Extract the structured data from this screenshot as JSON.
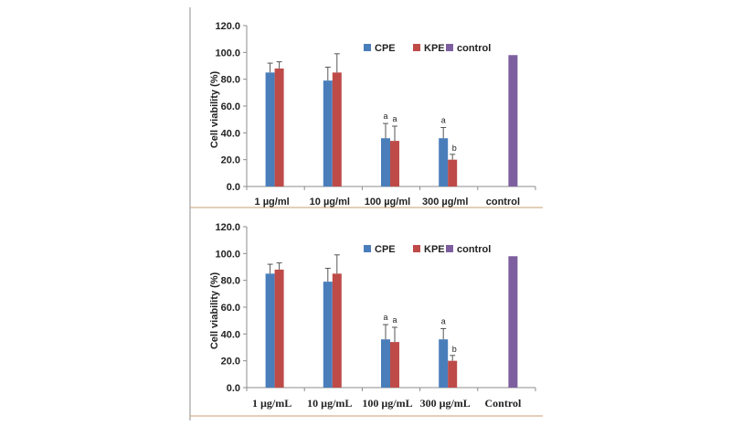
{
  "chart_data": [
    {
      "type": "bar",
      "ylabel": "Cell viability (%)",
      "ylim": [
        0,
        120
      ],
      "yticks": [
        "0.0",
        "20.0",
        "40.0",
        "60.0",
        "80.0",
        "100.0",
        "120.0"
      ],
      "categories": [
        "1 µg/ml",
        "10 µg/ml",
        "100 µg/ml",
        "300 µg/ml",
        "control"
      ],
      "legend": [
        "CPE",
        "KPE",
        "control"
      ],
      "legend_position": "top-right",
      "grid": false,
      "series": [
        {
          "name": "CPE",
          "color": "#4a7ebb",
          "values": [
            85,
            79,
            36,
            36,
            null
          ],
          "errors": [
            7,
            10,
            11,
            8,
            null
          ],
          "annotations": [
            "",
            "",
            "a",
            "a",
            ""
          ]
        },
        {
          "name": "KPE",
          "color": "#be4b48",
          "values": [
            88,
            85,
            34,
            20,
            null
          ],
          "errors": [
            5,
            14,
            11,
            4,
            null
          ],
          "annotations": [
            "",
            "",
            "a",
            "b",
            ""
          ]
        },
        {
          "name": "control",
          "color": "#7d5fa0",
          "values": [
            null,
            null,
            null,
            null,
            98
          ],
          "errors": [
            null,
            null,
            null,
            null,
            null
          ],
          "annotations": [
            "",
            "",
            "",
            "",
            ""
          ]
        }
      ]
    },
    {
      "type": "bar",
      "ylabel": "Cell viability (%)",
      "ylim": [
        0,
        120
      ],
      "yticks": [
        "0.0",
        "20.0",
        "40.0",
        "60.0",
        "80.0",
        "100.0",
        "120.0"
      ],
      "categories": [
        "1 µg/mL",
        "10 µg/mL",
        "100 µg/mL",
        "300 µg/mL",
        "Control"
      ],
      "legend": [
        "CPE",
        "KPE",
        "control"
      ],
      "legend_position": "top-right",
      "grid": false,
      "series": [
        {
          "name": "CPE",
          "color": "#4a7ebb",
          "values": [
            85,
            79,
            36,
            36,
            null
          ],
          "errors": [
            7,
            10,
            11,
            8,
            null
          ],
          "annotations": [
            "",
            "",
            "a",
            "a",
            ""
          ]
        },
        {
          "name": "KPE",
          "color": "#be4b48",
          "values": [
            88,
            85,
            34,
            20,
            null
          ],
          "errors": [
            5,
            14,
            11,
            4,
            null
          ],
          "annotations": [
            "",
            "",
            "a",
            "b",
            ""
          ]
        },
        {
          "name": "control",
          "color": "#7d5fa0",
          "values": [
            null,
            null,
            null,
            null,
            98
          ],
          "errors": [
            null,
            null,
            null,
            null,
            null
          ],
          "annotations": [
            "",
            "",
            "",
            "",
            ""
          ]
        }
      ]
    }
  ]
}
